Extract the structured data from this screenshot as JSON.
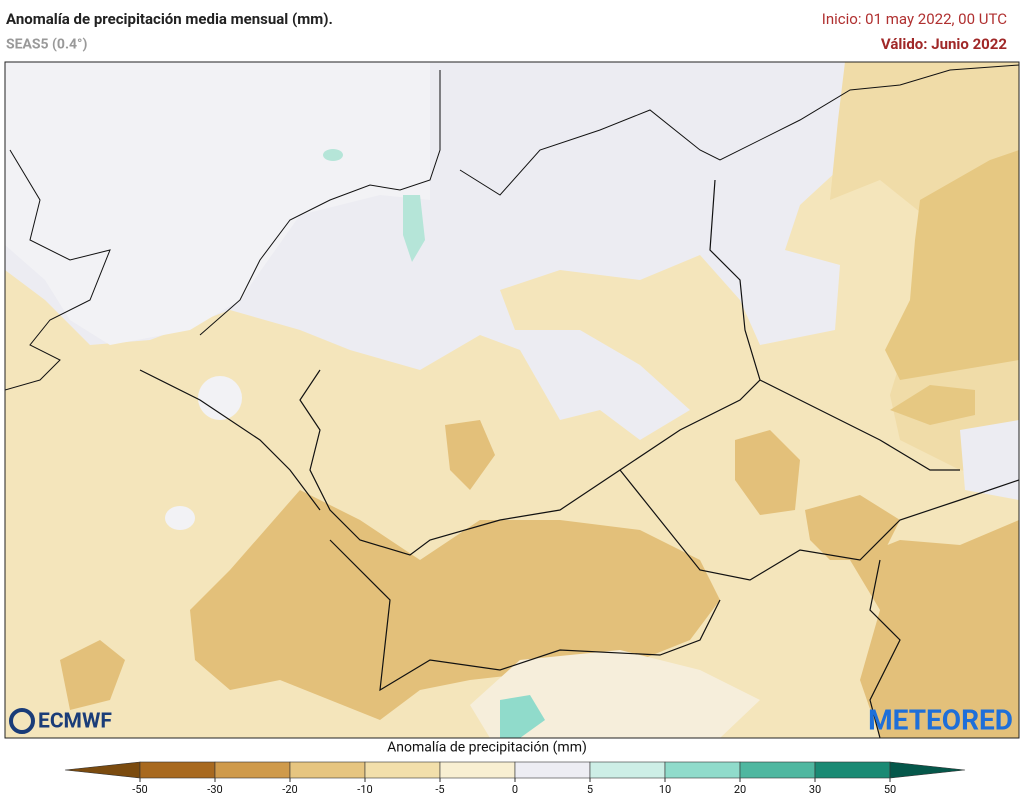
{
  "header": {
    "title": "Anomalía de precipitación media mensual (mm).",
    "model": "SEAS5 (0.4°)",
    "init": "Inicio: 01 may 2022, 00 UTC",
    "valid": "Válido: Junio 2022"
  },
  "logos": {
    "left": "ECMWF",
    "right": "METEORED"
  },
  "colorbar": {
    "label": "Anomalía de precipitación (mm)",
    "ticks": [
      -50,
      -30,
      -20,
      -10,
      -5,
      0,
      5,
      10,
      20,
      30,
      50
    ],
    "colors": [
      "#7b4b0f",
      "#a8691f",
      "#cf9a4b",
      "#e6c580",
      "#f2dfab",
      "#f8efd2",
      "#ededf3",
      "#cdeee6",
      "#90dbcb",
      "#4fb7a0",
      "#1a8a74",
      "#05574a"
    ]
  }
}
